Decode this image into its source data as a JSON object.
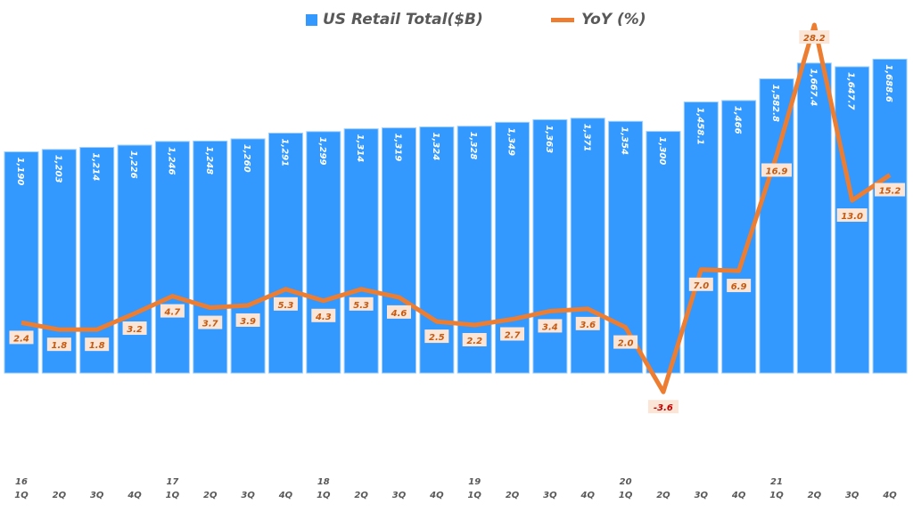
{
  "chart_data": {
    "type": "bar+line",
    "categories": [
      "16 1Q",
      "2Q",
      "3Q",
      "4Q",
      "17 1Q",
      "2Q",
      "3Q",
      "4Q",
      "18 1Q",
      "2Q",
      "3Q",
      "4Q",
      "19 1Q",
      "2Q",
      "3Q",
      "4Q",
      "20 1Q",
      "2Q",
      "3Q",
      "4Q",
      "21 1Q",
      "2Q",
      "3Q",
      "4Q"
    ],
    "year_labels": [
      "16",
      "",
      "",
      "",
      "17",
      "",
      "",
      "",
      "18",
      "",
      "",
      "",
      "19",
      "",
      "",
      "",
      "20",
      "",
      "",
      "",
      "21",
      "",
      "",
      ""
    ],
    "quarter_labels": [
      "1Q",
      "2Q",
      "3Q",
      "4Q",
      "1Q",
      "2Q",
      "3Q",
      "4Q",
      "1Q",
      "2Q",
      "3Q",
      "4Q",
      "1Q",
      "2Q",
      "3Q",
      "4Q",
      "1Q",
      "2Q",
      "3Q",
      "4Q",
      "1Q",
      "2Q",
      "3Q",
      "4Q"
    ],
    "series": [
      {
        "name": "US Retail Total($B)",
        "type": "bar",
        "color": "#3399ff",
        "values": [
          1190,
          1203,
          1214,
          1226,
          1246,
          1248,
          1260,
          1291,
          1299,
          1314,
          1319,
          1324,
          1328,
          1349,
          1363,
          1371,
          1354,
          1300,
          1458.1,
          1466,
          1582.8,
          1667.4,
          1647.7,
          1688.6
        ],
        "labels": [
          "1,190",
          "1,203",
          "1,214",
          "1,226",
          "1,246",
          "1,248",
          "1,260",
          "1,291",
          "1,299",
          "1,314",
          "1,319",
          "1,324",
          "1,328",
          "1,349",
          "1,363",
          "1,371",
          "1,354",
          "1,300",
          "1,458.1",
          "1,466",
          "1,582.8",
          "1,667.4",
          "1,647.7",
          "1,688.6"
        ]
      },
      {
        "name": "YoY (%)",
        "type": "line",
        "color": "#ed7d31",
        "values": [
          2.4,
          1.8,
          1.8,
          3.2,
          4.7,
          3.7,
          3.9,
          5.3,
          4.3,
          5.3,
          4.6,
          2.5,
          2.2,
          2.7,
          3.4,
          3.6,
          2.0,
          -3.6,
          7.0,
          6.9,
          16.9,
          28.2,
          13.0,
          15.2
        ],
        "labels": [
          "2.4",
          "1.8",
          "1.8",
          "3.2",
          "4.7",
          "3.7",
          "3.9",
          "5.3",
          "4.3",
          "5.3",
          "4.6",
          "2.5",
          "2.2",
          "2.7",
          "3.4",
          "3.6",
          "2.0",
          "-3.6",
          "7.0",
          "6.9",
          "16.9",
          "28.2",
          "13.0",
          "15.2"
        ]
      }
    ],
    "legend": "top",
    "grid": false
  },
  "legend": {
    "bar": "US Retail Total($B)",
    "line": "YoY (%)"
  }
}
